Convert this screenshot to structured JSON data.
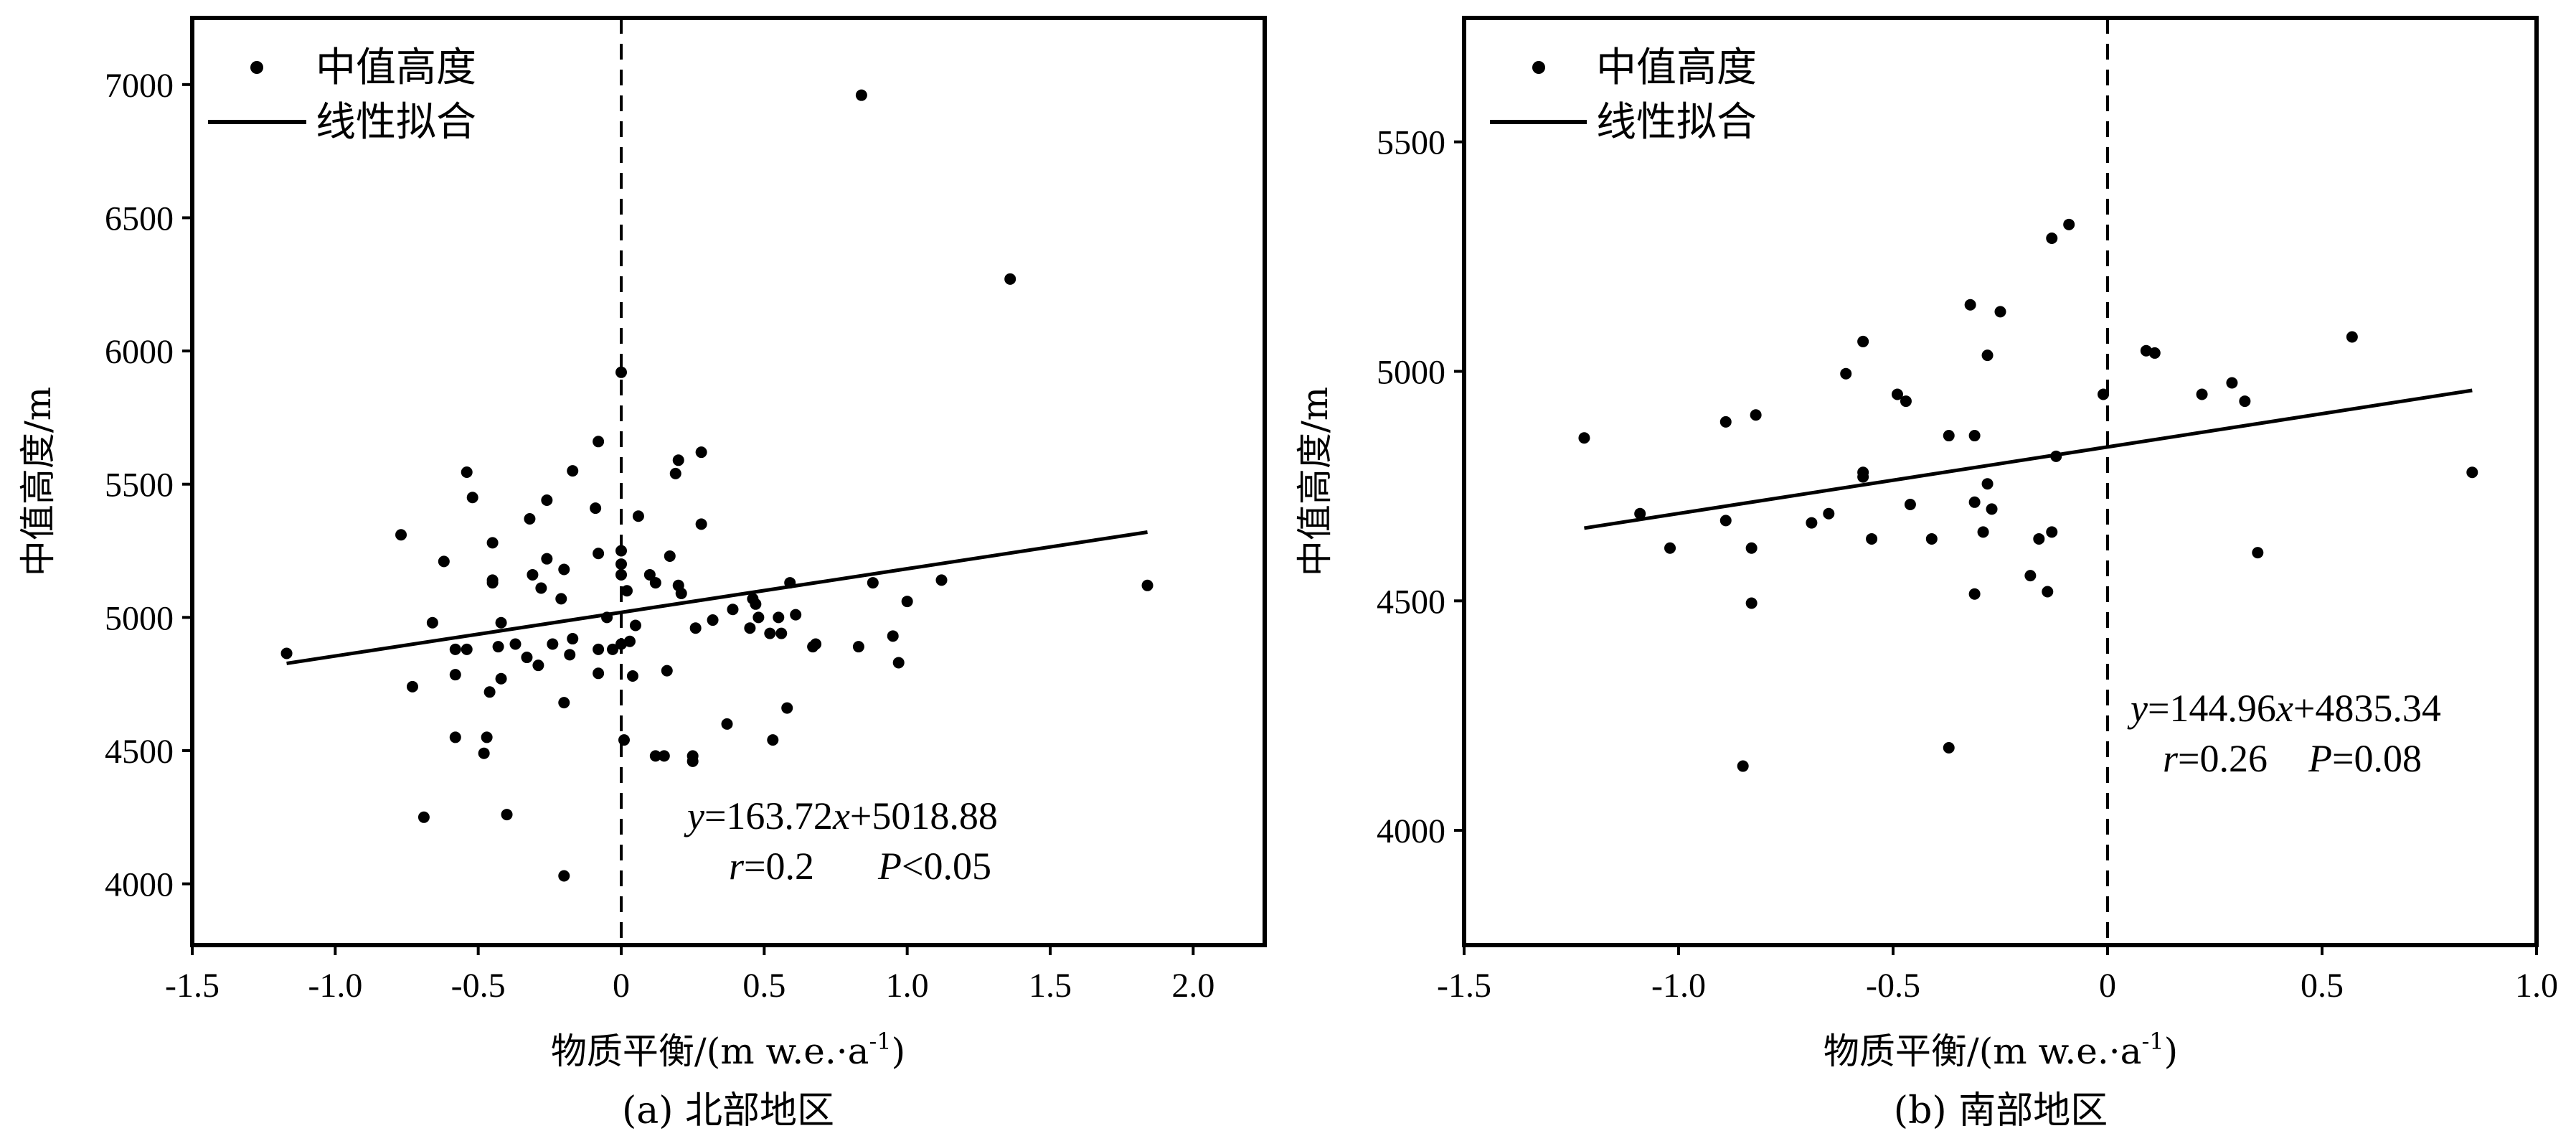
{
  "chart_data": [
    {
      "type": "scatter",
      "panel": "a",
      "caption": "(a) 北部地区",
      "xlabel": "物质平衡/(m w.e.·a",
      "xlabel_sup": "-1",
      "xlabel_close": ")",
      "ylabel": "中值高度/m",
      "xlim": [
        -1.5,
        2.25
      ],
      "ylim": [
        3770,
        7250
      ],
      "xticks": [
        -1.5,
        -1.0,
        -0.5,
        0,
        0.5,
        1.0,
        1.5,
        2.0
      ],
      "xtick_labels": [
        "-1.5",
        "-1.0",
        "-0.5",
        "0",
        "0.5",
        "1.0",
        "1.5",
        "2.0"
      ],
      "yticks": [
        4000,
        4500,
        5000,
        5500,
        6000,
        6500,
        7000
      ],
      "ytick_labels": [
        "4000",
        "4500",
        "5000",
        "5500",
        "6000",
        "6500",
        "7000"
      ],
      "legend": {
        "placement": "top-left",
        "points_label": "中值高度",
        "fit_label": "线性拟合"
      },
      "zero_line": {
        "x": 0,
        "style": "dashed"
      },
      "fit": {
        "slope": 163.72,
        "intercept": 5018.88,
        "x_range": [
          -1.17,
          1.84
        ]
      },
      "equation": {
        "y": "y",
        "eq": "=163.72",
        "x": "x",
        "rest": "+5018.88",
        "r": "r",
        "r_val": "=0.2",
        "p": "P",
        "p_val": "<0.05"
      },
      "points": [
        [
          -1.17,
          4865
        ],
        [
          -0.77,
          5310
        ],
        [
          -0.73,
          4740
        ],
        [
          -0.69,
          4250
        ],
        [
          -0.66,
          4980
        ],
        [
          -0.62,
          5210
        ],
        [
          -0.58,
          4880
        ],
        [
          -0.58,
          4785
        ],
        [
          -0.58,
          4550
        ],
        [
          -0.54,
          4880
        ],
        [
          -0.54,
          5545
        ],
        [
          -0.52,
          5450
        ],
        [
          -0.48,
          4490
        ],
        [
          -0.47,
          4550
        ],
        [
          -0.46,
          4720
        ],
        [
          -0.45,
          5280
        ],
        [
          -0.45,
          5140
        ],
        [
          -0.45,
          5130
        ],
        [
          -0.43,
          4890
        ],
        [
          -0.42,
          4770
        ],
        [
          -0.42,
          4980
        ],
        [
          -0.4,
          4260
        ],
        [
          -0.37,
          4900
        ],
        [
          -0.33,
          4850
        ],
        [
          -0.32,
          5370
        ],
        [
          -0.31,
          5160
        ],
        [
          -0.29,
          4820
        ],
        [
          -0.28,
          5110
        ],
        [
          -0.26,
          5220
        ],
        [
          -0.26,
          5440
        ],
        [
          -0.24,
          4900
        ],
        [
          -0.21,
          5070
        ],
        [
          -0.2,
          5180
        ],
        [
          -0.2,
          4030
        ],
        [
          -0.2,
          4680
        ],
        [
          -0.18,
          4860
        ],
        [
          -0.17,
          5550
        ],
        [
          -0.17,
          4920
        ],
        [
          -0.09,
          5410
        ],
        [
          -0.08,
          5660
        ],
        [
          -0.08,
          5240
        ],
        [
          -0.08,
          4880
        ],
        [
          -0.08,
          4790
        ],
        [
          -0.05,
          5000
        ],
        [
          -0.03,
          4880
        ],
        [
          0.0,
          5920
        ],
        [
          0.0,
          5250
        ],
        [
          0.0,
          5200
        ],
        [
          0.0,
          5160
        ],
        [
          0.0,
          4900
        ],
        [
          0.01,
          4540
        ],
        [
          0.02,
          5100
        ],
        [
          0.03,
          4910
        ],
        [
          0.04,
          4780
        ],
        [
          0.05,
          4970
        ],
        [
          0.06,
          5380
        ],
        [
          0.1,
          5160
        ],
        [
          0.12,
          5130
        ],
        [
          0.12,
          4480
        ],
        [
          0.15,
          4480
        ],
        [
          0.16,
          4800
        ],
        [
          0.17,
          5230
        ],
        [
          0.19,
          5540
        ],
        [
          0.2,
          5120
        ],
        [
          0.2,
          5590
        ],
        [
          0.21,
          5090
        ],
        [
          0.25,
          4480
        ],
        [
          0.25,
          4460
        ],
        [
          0.26,
          4960
        ],
        [
          0.28,
          5350
        ],
        [
          0.28,
          5620
        ],
        [
          0.32,
          4990
        ],
        [
          0.37,
          4600
        ],
        [
          0.39,
          5030
        ],
        [
          0.45,
          4960
        ],
        [
          0.46,
          5070
        ],
        [
          0.47,
          5050
        ],
        [
          0.48,
          5000
        ],
        [
          0.52,
          4940
        ],
        [
          0.53,
          4540
        ],
        [
          0.55,
          5000
        ],
        [
          0.56,
          4940
        ],
        [
          0.58,
          4660
        ],
        [
          0.59,
          5130
        ],
        [
          0.61,
          5010
        ],
        [
          0.67,
          4890
        ],
        [
          0.68,
          4900
        ],
        [
          0.83,
          4890
        ],
        [
          0.84,
          6960
        ],
        [
          0.88,
          5130
        ],
        [
          0.95,
          4930
        ],
        [
          0.97,
          4830
        ],
        [
          1.0,
          5060
        ],
        [
          1.12,
          5140
        ],
        [
          1.36,
          6270
        ],
        [
          1.84,
          5120
        ]
      ]
    },
    {
      "type": "scatter",
      "panel": "b",
      "caption": "(b) 南部地区",
      "xlabel": "物质平衡/(m w.e.·a",
      "xlabel_sup": "-1",
      "xlabel_close": ")",
      "ylabel": "中值高度/m",
      "xlim": [
        -1.5,
        1.0
      ],
      "ylim": [
        3750,
        5770
      ],
      "xticks": [
        -1.5,
        -1.0,
        -0.5,
        0,
        0.5,
        1.0
      ],
      "xtick_labels": [
        "-1.5",
        "-1.0",
        "-0.5",
        "0",
        "0.5",
        "1.0"
      ],
      "yticks": [
        4000,
        4500,
        5000,
        5500
      ],
      "ytick_labels": [
        "4000",
        "4500",
        "5000",
        "5500"
      ],
      "legend": {
        "placement": "top-left",
        "points_label": "中值高度",
        "fit_label": "线性拟合"
      },
      "zero_line": {
        "x": 0,
        "style": "dashed"
      },
      "fit": {
        "slope": 144.96,
        "intercept": 4835.34,
        "x_range": [
          -1.22,
          0.85
        ]
      },
      "equation": {
        "y": "y",
        "eq": "=144.96",
        "x": "x",
        "rest": "+4835.34",
        "r": "r",
        "r_val": "=0.26",
        "p": "P",
        "p_val": "=0.08"
      },
      "points": [
        [
          -1.22,
          4855
        ],
        [
          -1.09,
          4690
        ],
        [
          -1.02,
          4615
        ],
        [
          -0.89,
          4890
        ],
        [
          -0.89,
          4675
        ],
        [
          -0.85,
          4140
        ],
        [
          -0.83,
          4615
        ],
        [
          -0.83,
          4495
        ],
        [
          -0.82,
          4905
        ],
        [
          -0.69,
          4670
        ],
        [
          -0.65,
          4690
        ],
        [
          -0.61,
          4995
        ],
        [
          -0.57,
          4780
        ],
        [
          -0.57,
          4770
        ],
        [
          -0.57,
          5065
        ],
        [
          -0.55,
          4635
        ],
        [
          -0.49,
          4950
        ],
        [
          -0.47,
          4935
        ],
        [
          -0.46,
          4710
        ],
        [
          -0.41,
          4635
        ],
        [
          -0.37,
          4860
        ],
        [
          -0.37,
          4180
        ],
        [
          -0.32,
          5145
        ],
        [
          -0.31,
          4860
        ],
        [
          -0.31,
          4515
        ],
        [
          -0.31,
          4715
        ],
        [
          -0.29,
          4650
        ],
        [
          -0.28,
          5035
        ],
        [
          -0.28,
          4755
        ],
        [
          -0.27,
          4700
        ],
        [
          -0.25,
          5130
        ],
        [
          -0.18,
          4555
        ],
        [
          -0.16,
          4635
        ],
        [
          -0.14,
          4520
        ],
        [
          -0.13,
          4650
        ],
        [
          -0.13,
          5290
        ],
        [
          -0.12,
          4815
        ],
        [
          -0.09,
          5320
        ],
        [
          -0.01,
          4950
        ],
        [
          0.09,
          5045
        ],
        [
          0.11,
          5040
        ],
        [
          0.22,
          4950
        ],
        [
          0.29,
          4975
        ],
        [
          0.32,
          4935
        ],
        [
          0.35,
          4605
        ],
        [
          0.57,
          5075
        ],
        [
          0.85,
          4780
        ]
      ]
    }
  ]
}
